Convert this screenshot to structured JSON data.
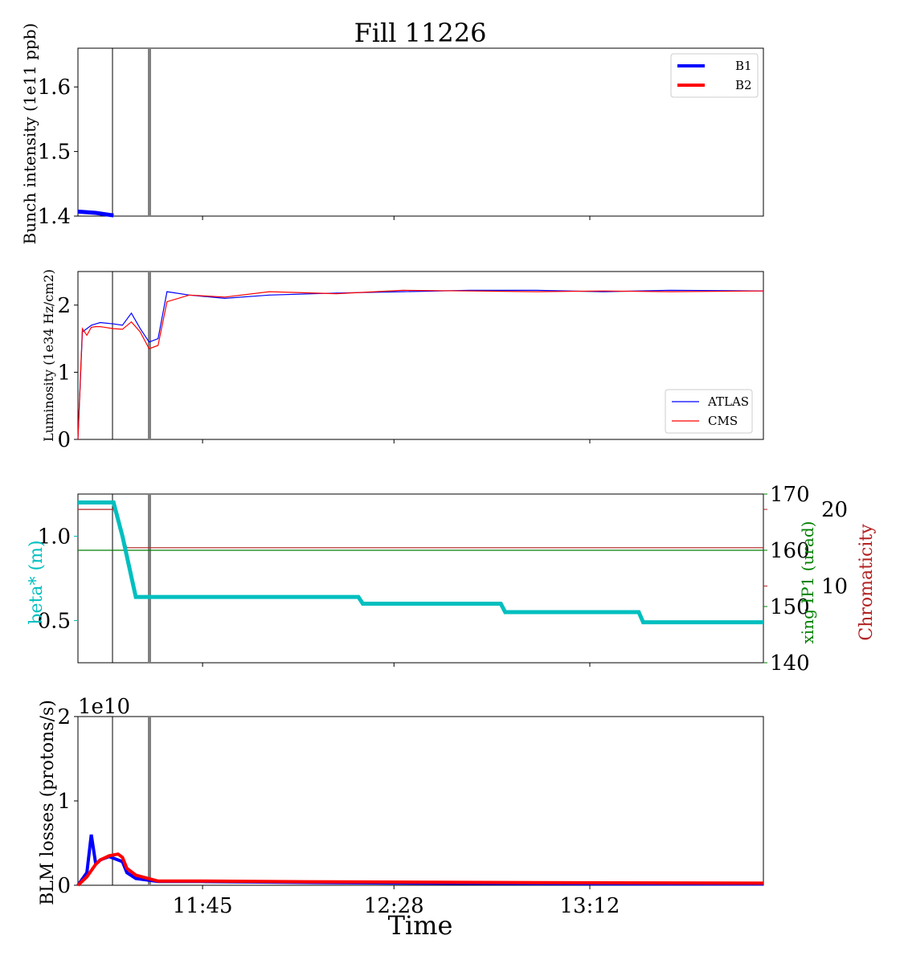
{
  "title": "Fill 11226",
  "xlabel": "Time",
  "x_ticks": [
    "11:45",
    "12:28",
    "13:12"
  ],
  "colors": {
    "b1": "#0000ff",
    "b2": "#ff0000",
    "atlas": "#0000ff",
    "cms": "#ff0000",
    "beta": "#00bfbf",
    "xing": "#008000",
    "chroma": "#b22222",
    "marker_gray": "#808080"
  },
  "chart_data": [
    {
      "type": "line",
      "ylabel": "Bunch intensity (1e11 ppb)",
      "ylim": [
        1.4,
        1.66
      ],
      "y_ticks": [
        "1.4",
        "1.5",
        "1.6"
      ],
      "legend": "top-right",
      "series": [
        {
          "name": "B1",
          "x": [
            "11:17",
            "11:21",
            "11:25"
          ],
          "values": [
            1.407,
            1.405,
            1.401
          ]
        },
        {
          "name": "B2",
          "x": [],
          "values": []
        }
      ]
    },
    {
      "type": "line",
      "ylabel": "Luminosity (1e34 Hz/cm2)",
      "ylim": [
        0,
        2.5
      ],
      "y_ticks": [
        "0",
        "1",
        "2"
      ],
      "legend": "bottom-right",
      "series": [
        {
          "name": "ATLAS",
          "x": [
            "11:17",
            "11:18",
            "11:19",
            "11:20",
            "11:21",
            "11:22",
            "11:25",
            "11:27",
            "11:29",
            "11:31",
            "11:33",
            "11:35",
            "11:37",
            "11:42",
            "11:50",
            "12:00",
            "12:15",
            "12:30",
            "12:45",
            "13:00",
            "13:15",
            "13:30",
            "13:51"
          ],
          "values": [
            0,
            1.6,
            1.65,
            1.7,
            1.72,
            1.74,
            1.72,
            1.7,
            1.88,
            1.65,
            1.45,
            1.5,
            2.2,
            2.15,
            2.1,
            2.15,
            2.18,
            2.2,
            2.22,
            2.22,
            2.2,
            2.22,
            2.21
          ]
        },
        {
          "name": "CMS",
          "x": [
            "11:17",
            "11:18",
            "11:19",
            "11:20",
            "11:21",
            "11:22",
            "11:25",
            "11:27",
            "11:29",
            "11:31",
            "11:33",
            "11:35",
            "11:37",
            "11:42",
            "11:50",
            "12:00",
            "12:15",
            "12:30",
            "12:45",
            "13:00",
            "13:15",
            "13:30",
            "13:51"
          ],
          "values": [
            0,
            1.65,
            1.55,
            1.67,
            1.68,
            1.68,
            1.65,
            1.64,
            1.75,
            1.6,
            1.35,
            1.4,
            2.05,
            2.15,
            2.12,
            2.2,
            2.17,
            2.22,
            2.21,
            2.2,
            2.21,
            2.2,
            2.21
          ]
        }
      ]
    },
    {
      "type": "line",
      "ylabel": "beta* (m)",
      "ylim": [
        0.25,
        1.25
      ],
      "y_ticks": [
        "0.5",
        "1.0"
      ],
      "y2label": "xing IP1 (urad)",
      "y2lim": [
        140,
        170
      ],
      "y2_ticks": [
        "140",
        "150",
        "160",
        "170"
      ],
      "y3label": "Chromaticity",
      "y3lim": [
        0,
        22
      ],
      "y3_ticks": [
        "10",
        "20"
      ],
      "series": [
        {
          "name": "beta*",
          "x": [
            "11:17",
            "11:25",
            "11:27",
            "11:30",
            "12:20",
            "12:21",
            "12:52",
            "12:53",
            "13:23",
            "13:24",
            "13:51"
          ],
          "values": [
            1.2,
            1.2,
            1.0,
            0.64,
            0.64,
            0.6,
            0.6,
            0.55,
            0.55,
            0.49,
            0.49
          ]
        },
        {
          "name": "xing IP1",
          "x": [
            "11:17",
            "13:51"
          ],
          "values": [
            160,
            160
          ]
        },
        {
          "name": "Chromaticity",
          "x": [
            "11:17",
            "11:25",
            "11:28",
            "13:51"
          ],
          "values": [
            20,
            20,
            15,
            15
          ]
        }
      ]
    },
    {
      "type": "line",
      "ylabel": "BLM losses (protons/s)",
      "ylim": [
        0,
        20000000000
      ],
      "y_ticks": [
        "0",
        "1",
        "2"
      ],
      "offset_text": "1e10",
      "series": [
        {
          "name": "B1",
          "x": [
            "11:17",
            "11:19",
            "11:20",
            "11:21",
            "11:22",
            "11:24",
            "11:26",
            "11:27",
            "11:28",
            "11:30",
            "11:35",
            "11:45",
            "12:15",
            "13:00",
            "13:51"
          ],
          "values": [
            0,
            1500000000,
            6000000000,
            2500000000,
            3000000000,
            3400000000,
            3000000000,
            2800000000,
            1500000000,
            800000000,
            450000000,
            450000000,
            300000000,
            200000000,
            150000000
          ]
        },
        {
          "name": "B2",
          "x": [
            "11:17",
            "11:19",
            "11:21",
            "11:22",
            "11:24",
            "11:26",
            "11:27",
            "11:28",
            "11:30",
            "11:35",
            "11:45",
            "12:15",
            "13:00",
            "13:51"
          ],
          "values": [
            0,
            1000000000,
            2500000000,
            3000000000,
            3500000000,
            3700000000,
            3300000000,
            2000000000,
            1200000000,
            500000000,
            500000000,
            400000000,
            300000000,
            250000000
          ]
        }
      ]
    }
  ]
}
